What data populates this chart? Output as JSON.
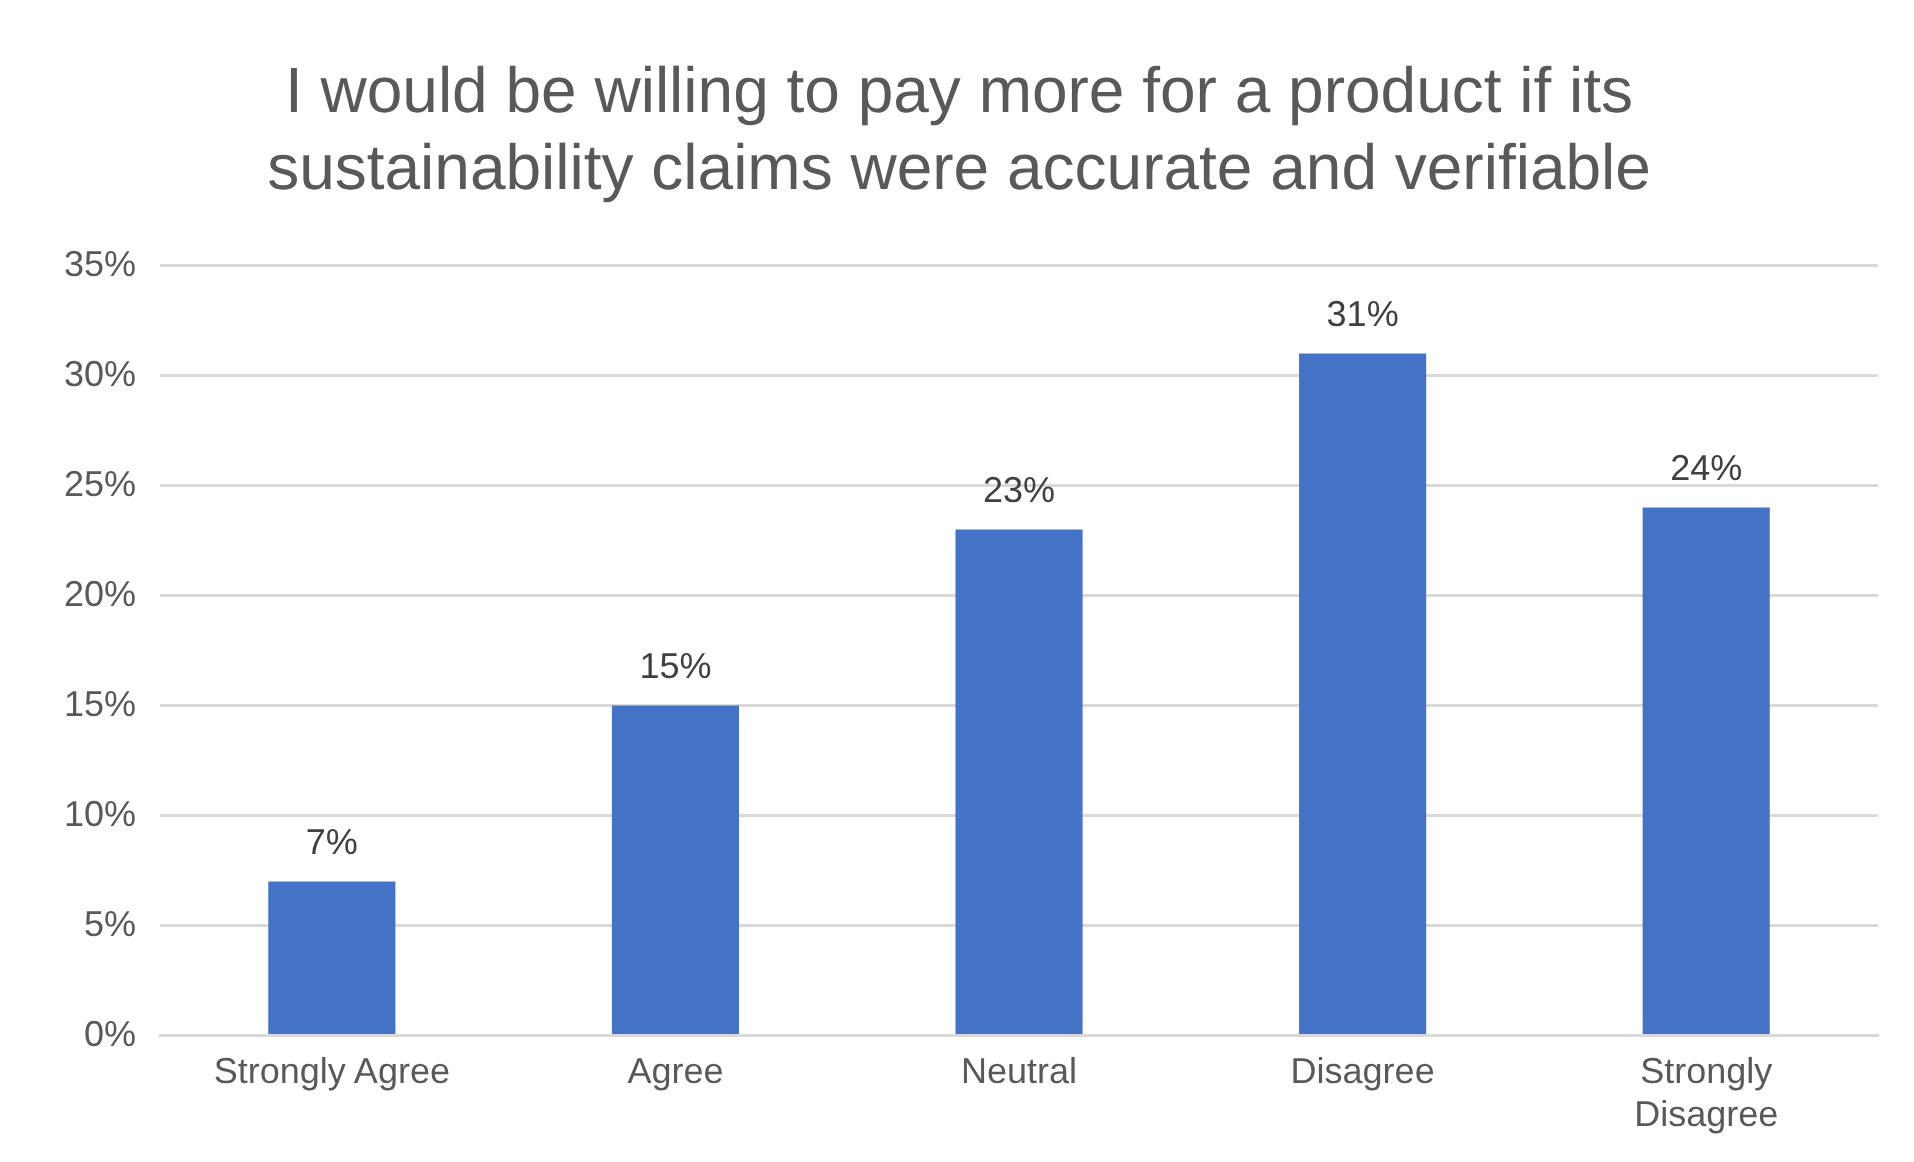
{
  "chart_data": {
    "type": "bar",
    "title": "I would be willing to pay more for a product if its sustainability claims were accurate and verifiable",
    "categories": [
      "Strongly Agree",
      "Agree",
      "Neutral",
      "Disagree",
      "Strongly Disagree"
    ],
    "values": [
      7,
      15,
      23,
      31,
      24
    ],
    "value_labels": [
      "7%",
      "15%",
      "23%",
      "31%",
      "24%"
    ],
    "color": "#4472c4",
    "ylim": [
      0,
      35
    ],
    "yticks": [
      {
        "value": 0,
        "label": "0%"
      },
      {
        "value": 5,
        "label": "5%"
      },
      {
        "value": 10,
        "label": "10%"
      },
      {
        "value": 15,
        "label": "15%"
      },
      {
        "value": 20,
        "label": "20%"
      },
      {
        "value": 25,
        "label": "25%"
      },
      {
        "value": 30,
        "label": "30%"
      },
      {
        "value": 35,
        "label": "35%"
      }
    ],
    "grid": "y",
    "legend": false
  }
}
